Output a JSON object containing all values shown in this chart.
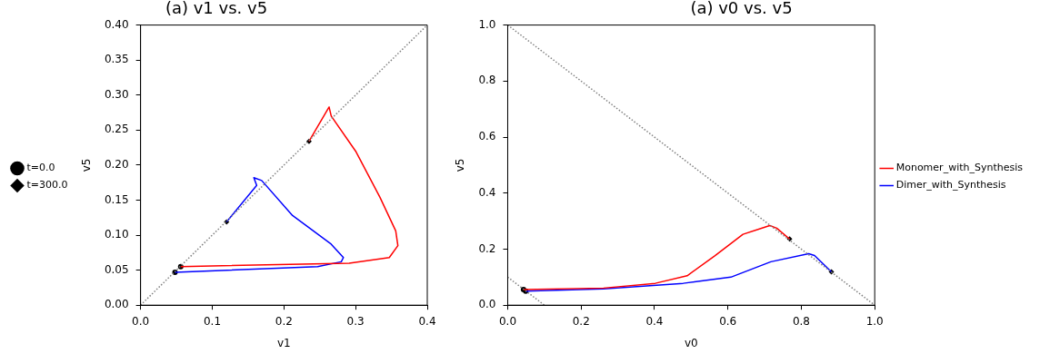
{
  "chart_data": [
    {
      "type": "line",
      "title": "(a) v1 vs. v5",
      "xlabel": "v1",
      "ylabel": "v5",
      "xlim": [
        0,
        0.4
      ],
      "ylim": [
        0,
        0.4
      ],
      "xticks": [
        {
          "value": 0,
          "label": "0.0"
        },
        {
          "value": 0.1,
          "label": "0.1"
        },
        {
          "value": 0.2,
          "label": "0.2"
        },
        {
          "value": 0.3,
          "label": "0.3"
        },
        {
          "value": 0.4,
          "label": "0.4"
        }
      ],
      "yticks": [
        {
          "value": 0,
          "label": "0.00"
        },
        {
          "value": 0.05,
          "label": "0.05"
        },
        {
          "value": 0.1,
          "label": "0.10"
        },
        {
          "value": 0.15,
          "label": "0.15"
        },
        {
          "value": 0.2,
          "label": "0.20"
        },
        {
          "value": 0.25,
          "label": "0.25"
        },
        {
          "value": 0.3,
          "label": "0.30"
        },
        {
          "value": 0.35,
          "label": "0.35"
        },
        {
          "value": 0.4,
          "label": "0.40"
        }
      ],
      "grid": false,
      "legend": "left",
      "series": [
        {
          "type": "line",
          "color": "#808080",
          "line_style": "dotted",
          "x": [
            0,
            0.4
          ],
          "values": [
            0,
            0.4
          ]
        },
        {
          "type": "line",
          "color": "#ff0000",
          "line_style": "solid",
          "x": [
            0.056,
            0.291,
            0.347,
            0.359,
            0.356,
            0.334,
            0.3,
            0.266,
            0.263,
            0.235
          ],
          "values": [
            0.055,
            0.06,
            0.068,
            0.085,
            0.106,
            0.154,
            0.22,
            0.27,
            0.283,
            0.234
          ]
        },
        {
          "type": "line",
          "color": "#0000ff",
          "line_style": "solid",
          "x": [
            0.048,
            0.247,
            0.28,
            0.283,
            0.265,
            0.212,
            0.169,
            0.158,
            0.162,
            0.12
          ],
          "values": [
            0.047,
            0.055,
            0.062,
            0.068,
            0.088,
            0.128,
            0.178,
            0.182,
            0.171,
            0.119
          ]
        },
        {
          "type": "scatter",
          "name": "t=0.0",
          "color": "#000000",
          "marker": "circle",
          "x": [
            0.056,
            0.048
          ],
          "values": [
            0.055,
            0.047
          ]
        },
        {
          "type": "scatter",
          "name": "t=300.0",
          "color": "#000000",
          "marker": "diamond",
          "x": [
            0.235,
            0.12
          ],
          "values": [
            0.234,
            0.119
          ]
        }
      ]
    },
    {
      "type": "line",
      "title": "(a) v0 vs. v5",
      "xlabel": "v0",
      "ylabel": "v5",
      "xlim": [
        0,
        1
      ],
      "ylim": [
        0,
        1
      ],
      "xticks": [
        {
          "value": 0,
          "label": "0.0"
        },
        {
          "value": 0.2,
          "label": "0.2"
        },
        {
          "value": 0.4,
          "label": "0.4"
        },
        {
          "value": 0.6,
          "label": "0.6"
        },
        {
          "value": 0.8,
          "label": "0.8"
        },
        {
          "value": 1,
          "label": "1.0"
        }
      ],
      "yticks": [
        {
          "value": 0,
          "label": "0.0"
        },
        {
          "value": 0.2,
          "label": "0.2"
        },
        {
          "value": 0.4,
          "label": "0.4"
        },
        {
          "value": 0.6,
          "label": "0.6"
        },
        {
          "value": 0.8,
          "label": "0.8"
        },
        {
          "value": 1,
          "label": "1.0"
        }
      ],
      "grid": false,
      "legend": "right",
      "series": [
        {
          "type": "line",
          "color": "#808080",
          "line_style": "dotted",
          "x": [
            0,
            1
          ],
          "values": [
            1,
            0
          ]
        },
        {
          "type": "line",
          "color": "#808080",
          "line_style": "dotted",
          "x": [
            0,
            0.1
          ],
          "values": [
            0.1,
            0
          ]
        },
        {
          "type": "line",
          "name": "Monomer_with_Synthesis",
          "color": "#ff0000",
          "line_style": "solid",
          "x": [
            0.043,
            0.261,
            0.402,
            0.489,
            0.565,
            0.641,
            0.714,
            0.733,
            0.768
          ],
          "values": [
            0.056,
            0.061,
            0.078,
            0.105,
            0.177,
            0.253,
            0.284,
            0.275,
            0.236
          ]
        },
        {
          "type": "line",
          "name": "Dimer_with_Synthesis",
          "color": "#0000ff",
          "line_style": "solid",
          "x": [
            0.049,
            0.261,
            0.478,
            0.608,
            0.717,
            0.82,
            0.836,
            0.882
          ],
          "values": [
            0.05,
            0.058,
            0.078,
            0.1,
            0.155,
            0.184,
            0.177,
            0.119
          ]
        },
        {
          "type": "scatter",
          "color": "#000000",
          "marker": "circle",
          "x": [
            0.043,
            0.049
          ],
          "values": [
            0.056,
            0.05
          ]
        },
        {
          "type": "scatter",
          "color": "#000000",
          "marker": "diamond",
          "x": [
            0.768,
            0.882
          ],
          "values": [
            0.236,
            0.119
          ]
        }
      ]
    }
  ]
}
